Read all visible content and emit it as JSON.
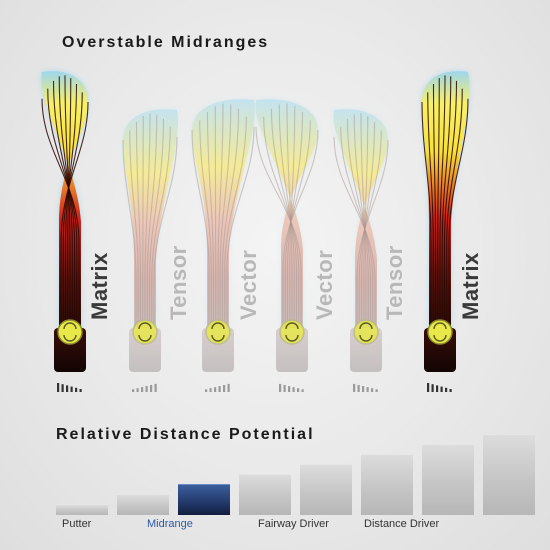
{
  "titles": {
    "top": "Overstable Midranges",
    "bottom": "Relative Distance Potential"
  },
  "discs": [
    {
      "name": "Matrix",
      "style": "strong",
      "stability_icon": "gauge-icon"
    },
    {
      "name": "Tensor",
      "style": "faded",
      "stability_icon": "gauge-icon"
    },
    {
      "name": "Vector",
      "style": "faded",
      "stability_icon": "gauge-icon"
    },
    {
      "name": "Vector",
      "style": "faded",
      "stability_icon": "gauge-icon"
    },
    {
      "name": "Tensor",
      "style": "faded",
      "stability_icon": "gauge-icon"
    },
    {
      "name": "Matrix",
      "style": "strong",
      "stability_icon": "gauge-icon"
    }
  ],
  "distance_scale": {
    "categories": [
      "Putter",
      "Midrange",
      "Fairway Driver",
      "Distance Driver"
    ],
    "highlight_category": "Midrange",
    "levels": [
      1,
      2,
      3,
      4,
      5,
      6,
      7,
      8
    ],
    "highlight_level": 3
  },
  "colors": {
    "highlight_label": "#2a5aa6",
    "highlight_bar": "#22386a",
    "flight_hot": "#d4231a",
    "flight_warm": "#f6e23a",
    "flight_glow": "#9dd6ee",
    "disc_icon": "#e8e84a"
  }
}
